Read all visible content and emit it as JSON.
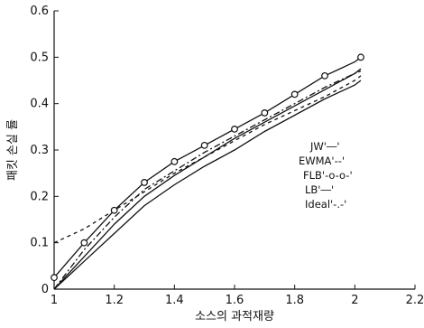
{
  "chart_data": {
    "type": "line",
    "title": "",
    "xlabel": "소스의 과적재량",
    "ylabel": "패킷 손실 률",
    "xlim": [
      1,
      2.2
    ],
    "ylim": [
      0,
      0.6
    ],
    "xticks": [
      "1",
      "1.2",
      "1.4",
      "1.6",
      "1.8",
      "2",
      "2.2"
    ],
    "yticks": [
      "0",
      "0.1",
      "0.2",
      "0.3",
      "0.4",
      "0.5",
      "0.6"
    ],
    "grid": false,
    "legend_position": "right",
    "series": [
      {
        "name": "JW",
        "legend_label": "JW'―'",
        "style": "solid",
        "color": "#111111",
        "x": [
          1.0,
          1.05,
          1.1,
          1.2,
          1.3,
          1.4,
          1.5,
          1.6,
          1.7,
          1.8,
          1.9,
          2.0,
          2.02
        ],
        "y": [
          0.0,
          0.03,
          0.06,
          0.12,
          0.18,
          0.225,
          0.265,
          0.3,
          0.34,
          0.375,
          0.41,
          0.44,
          0.45
        ]
      },
      {
        "name": "EWMA",
        "legend_label": "EWMA'--'",
        "style": "dashed",
        "color": "#111111",
        "x": [
          1.0,
          1.1,
          1.2,
          1.3,
          1.4,
          1.5,
          1.6,
          1.7,
          1.8,
          1.9,
          2.0,
          2.02
        ],
        "y": [
          0.1,
          0.13,
          0.17,
          0.21,
          0.25,
          0.285,
          0.32,
          0.355,
          0.385,
          0.415,
          0.45,
          0.46
        ]
      },
      {
        "name": "FLB",
        "legend_label": "FLB'-o-o-'",
        "style": "solid-marker",
        "color": "#111111",
        "x": [
          1.0,
          1.1,
          1.2,
          1.3,
          1.4,
          1.5,
          1.6,
          1.7,
          1.8,
          1.9,
          2.0,
          2.02
        ],
        "y": [
          0.025,
          0.1,
          0.17,
          0.23,
          0.275,
          0.31,
          0.345,
          0.38,
          0.42,
          0.46,
          0.49,
          0.5
        ],
        "markers": [
          1.0,
          1.1,
          1.2,
          1.3,
          1.4,
          1.5,
          1.6,
          1.7,
          1.8,
          1.9,
          2.02
        ]
      },
      {
        "name": "LB",
        "legend_label": "LB'―'",
        "style": "solid",
        "color": "#111111",
        "x": [
          1.0,
          1.1,
          1.2,
          1.3,
          1.4,
          1.5,
          1.6,
          1.7,
          1.8,
          1.9,
          2.0,
          2.02
        ],
        "y": [
          0.0,
          0.07,
          0.14,
          0.2,
          0.245,
          0.285,
          0.325,
          0.36,
          0.395,
          0.43,
          0.465,
          0.475
        ]
      },
      {
        "name": "Ideal",
        "legend_label": "Ideal'-.-'",
        "style": "dashdot",
        "color": "#111111",
        "x": [
          1.0,
          1.1,
          1.2,
          1.3,
          1.4,
          1.5,
          1.6,
          1.7,
          1.8,
          1.9,
          2.0,
          2.02
        ],
        "y": [
          0.0,
          0.085,
          0.155,
          0.215,
          0.255,
          0.295,
          0.33,
          0.365,
          0.4,
          0.435,
          0.465,
          0.47
        ]
      }
    ]
  }
}
